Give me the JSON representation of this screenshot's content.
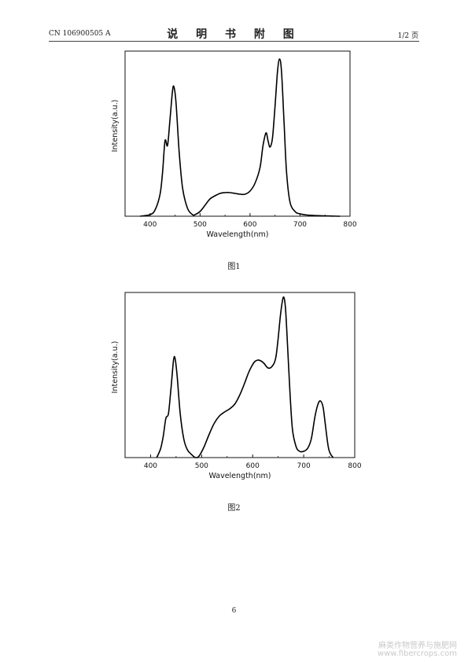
{
  "header": {
    "left": "CN 106900505 A",
    "center": "说  明  书  附  图",
    "right": "1/2 页"
  },
  "figures": [
    {
      "caption": "图1",
      "chart_data": {
        "type": "line",
        "xlabel": "Wavelength(nm)",
        "ylabel": "Intensity(a.u.)",
        "xlim": [
          350,
          800
        ],
        "ylim": [
          0,
          1.05
        ],
        "xticks": [
          400,
          500,
          600,
          700,
          800
        ],
        "yticks_shown": false,
        "grid": false,
        "legend": "none",
        "series": [
          {
            "x": [
              380,
              400,
              410,
              420,
              425,
              430,
              435,
              440,
              445,
              448,
              452,
              458,
              465,
              475,
              485,
              490,
              500,
              510,
              520,
              530,
              540,
              550,
              560,
              570,
              580,
              590,
              600,
              610,
              620,
              626,
              632,
              636,
              640,
              645,
              650,
              655,
              659,
              663,
              668,
              673,
              680,
              690,
              700,
              720,
              750,
              780
            ],
            "values": [
              0.0,
              0.01,
              0.04,
              0.14,
              0.28,
              0.48,
              0.45,
              0.62,
              0.8,
              0.82,
              0.72,
              0.42,
              0.18,
              0.05,
              0.01,
              0.01,
              0.03,
              0.07,
              0.11,
              0.13,
              0.145,
              0.15,
              0.15,
              0.145,
              0.14,
              0.14,
              0.16,
              0.21,
              0.31,
              0.45,
              0.53,
              0.48,
              0.44,
              0.5,
              0.7,
              0.92,
              1.0,
              0.92,
              0.6,
              0.28,
              0.09,
              0.03,
              0.015,
              0.006,
              0.002,
              0.0
            ]
          }
        ]
      }
    },
    {
      "caption": "图2",
      "chart_data": {
        "type": "line",
        "xlabel": "Wavelength(nm)",
        "ylabel": "Intensity(a.u.)",
        "xlim": [
          350,
          800
        ],
        "ylim": [
          0,
          1.05
        ],
        "xticks": [
          400,
          500,
          600,
          700,
          800
        ],
        "yticks_shown": false,
        "grid": false,
        "legend": "none",
        "series": [
          {
            "x": [
              412,
              415,
              420,
              425,
              430,
              435,
              440,
              445,
              448,
              452,
              458,
              465,
              472,
              480,
              488,
              495,
              505,
              515,
              525,
              535,
              545,
              555,
              565,
              575,
              585,
              592,
              598,
              604,
              610,
              616,
              622,
              630,
              638,
              645,
              650,
              655,
              660,
              664,
              668,
              673,
              678,
              685,
              692,
              700,
              708,
              715,
              722,
              728,
              733,
              738,
              742,
              748,
              753,
              758
            ],
            "values": [
              0.0,
              0.02,
              0.06,
              0.14,
              0.25,
              0.28,
              0.44,
              0.62,
              0.63,
              0.52,
              0.28,
              0.12,
              0.05,
              0.02,
              0.0,
              0.01,
              0.07,
              0.15,
              0.22,
              0.265,
              0.29,
              0.31,
              0.34,
              0.4,
              0.48,
              0.54,
              0.58,
              0.61,
              0.62,
              0.615,
              0.6,
              0.57,
              0.58,
              0.63,
              0.76,
              0.92,
              1.02,
              0.96,
              0.74,
              0.42,
              0.18,
              0.07,
              0.04,
              0.04,
              0.06,
              0.12,
              0.26,
              0.34,
              0.36,
              0.32,
              0.22,
              0.07,
              0.02,
              0.0
            ]
          }
        ]
      }
    }
  ],
  "page_number": "6",
  "watermark": {
    "line1": "麻类作物营养与施肥网",
    "line2": "www.fibercrops.com"
  }
}
